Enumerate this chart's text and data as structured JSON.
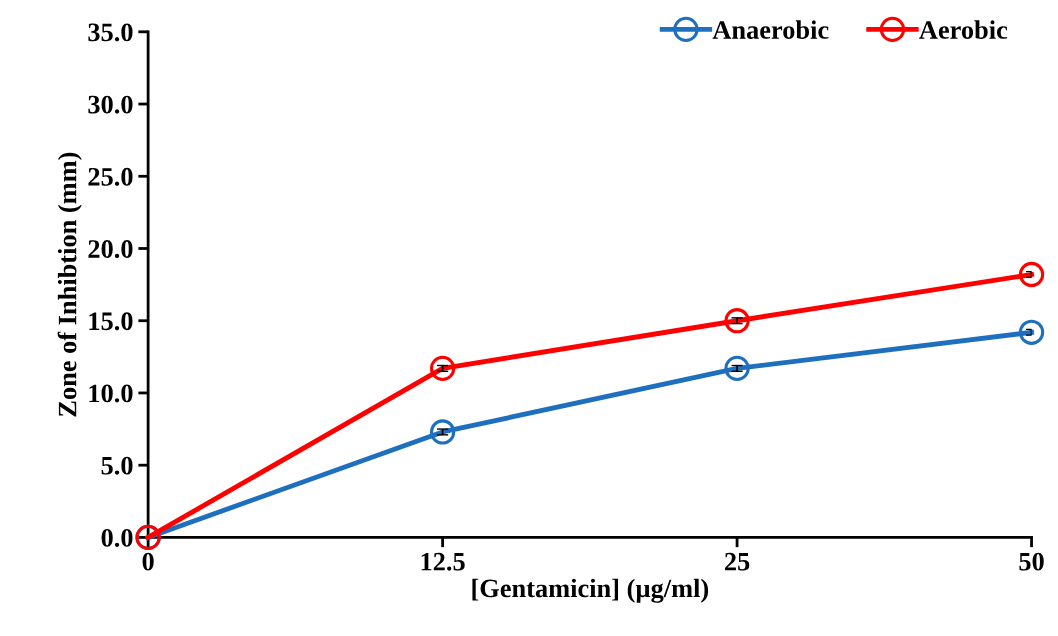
{
  "chart_data": {
    "type": "line",
    "xlabel": "[Gentamicin] (µg/ml)",
    "ylabel": "Zone of Inhibtion (mm)",
    "categories": [
      "0",
      "12.5",
      "25",
      "50"
    ],
    "series": [
      {
        "name": "Anaerobic",
        "color": "#1f6fbf",
        "values": [
          0,
          7.3,
          11.7,
          14.2
        ],
        "errors": [
          null,
          0.2,
          0.2,
          0.2
        ]
      },
      {
        "name": "Aerobic",
        "color": "#ff0000",
        "values": [
          0,
          11.7,
          15.0,
          18.2
        ],
        "errors": [
          null,
          0.2,
          0.2,
          0.2
        ]
      }
    ],
    "ylim": [
      0,
      35
    ],
    "yticks": [
      {
        "value": 0,
        "label": "0.0"
      },
      {
        "value": 5,
        "label": "5.0"
      },
      {
        "value": 10,
        "label": "10.0"
      },
      {
        "value": 15,
        "label": "15.0"
      },
      {
        "value": 20,
        "label": "20.0"
      },
      {
        "value": 25,
        "label": "25.0"
      },
      {
        "value": 30,
        "label": "30.0"
      },
      {
        "value": 35,
        "label": "35.0"
      }
    ],
    "grid": false,
    "legend": "top right",
    "marker": "circle",
    "line_style": "solid"
  }
}
